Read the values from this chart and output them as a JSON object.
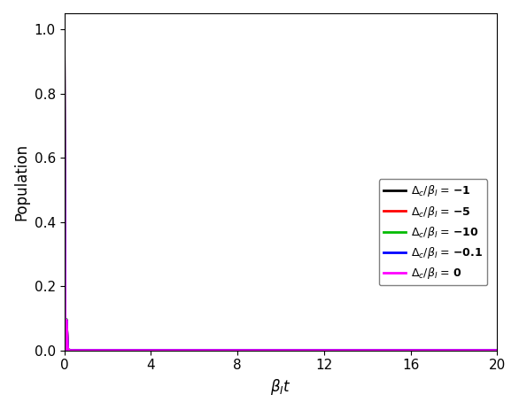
{
  "xlabel": "$\\beta_I t$",
  "ylabel": "Population",
  "xlim": [
    0,
    20
  ],
  "ylim": [
    0.0,
    1.05
  ],
  "yticks": [
    0.0,
    0.2,
    0.4,
    0.6,
    0.8,
    1.0
  ],
  "xticks": [
    0,
    4,
    8,
    12,
    16,
    20
  ],
  "curves": [
    {
      "label": "-1",
      "color": "#000000",
      "delta": -1.0
    },
    {
      "label": "-5",
      "color": "#ff0000",
      "delta": -5.0
    },
    {
      "label": "-10",
      "color": "#00bb00",
      "delta": -10.0
    },
    {
      "label": "-0.1",
      "color": "#0000ff",
      "delta": -0.1
    },
    {
      "label": "0",
      "color": "#ff00ff",
      "delta": 0.0
    }
  ],
  "legend_fontsize": 9,
  "axis_fontsize": 12,
  "tick_fontsize": 11,
  "linewidth": 2.0,
  "figsize": [
    5.86,
    4.63
  ],
  "dpi": 100
}
